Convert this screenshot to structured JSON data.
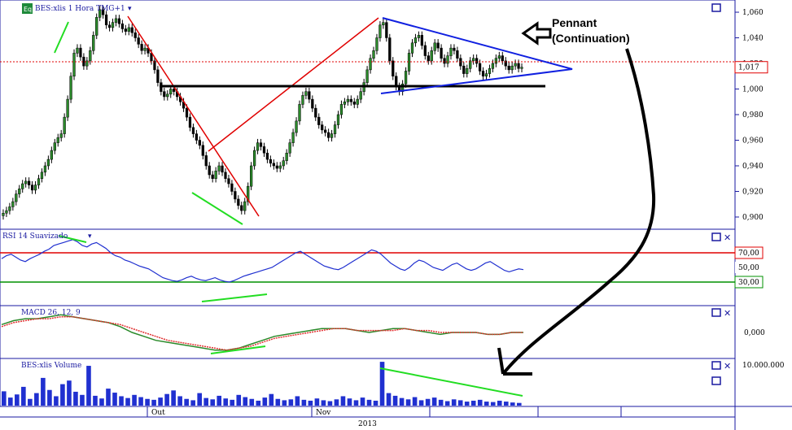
{
  "chart_data": [
    {
      "type": "candlestick",
      "panel": "price",
      "title": "BES:xlis 1 Hora TMG+1",
      "badge": "Eq",
      "ylim": [
        0.893,
        1.067
      ],
      "yticks": [
        "1,060",
        "1,040",
        "1,020",
        "1,000",
        "0,980",
        "0,960",
        "0,940",
        "0,920",
        "0,900"
      ],
      "ytick_values": [
        1.06,
        1.04,
        1.02,
        1.0,
        0.98,
        0.96,
        0.94,
        0.92,
        0.9
      ],
      "current_value": "1,017",
      "current": 1.017,
      "series": [
        {
          "name": "close",
          "values": [
            0.903,
            0.905,
            0.908,
            0.912,
            0.918,
            0.922,
            0.926,
            0.928,
            0.925,
            0.921,
            0.925,
            0.93,
            0.935,
            0.94,
            0.945,
            0.952,
            0.958,
            0.962,
            0.965,
            0.978,
            0.992,
            1.01,
            1.028,
            1.032,
            1.025,
            1.018,
            1.022,
            1.03,
            1.042,
            1.056,
            1.062,
            1.058,
            1.05,
            1.048,
            1.052,
            1.055,
            1.051,
            1.047,
            1.045,
            1.048,
            1.044,
            1.04,
            1.035,
            1.03,
            1.032,
            1.028,
            1.022,
            1.015,
            1.005,
            0.998,
            0.994,
            0.996,
            1.0,
            0.998,
            0.994,
            0.99,
            0.985,
            0.978,
            0.97,
            0.965,
            0.96,
            0.956,
            0.948,
            0.94,
            0.933,
            0.93,
            0.936,
            0.94,
            0.935,
            0.93,
            0.926,
            0.92,
            0.914,
            0.909,
            0.905,
            0.912,
            0.924,
            0.94,
            0.952,
            0.958,
            0.955,
            0.95,
            0.945,
            0.942,
            0.94,
            0.938,
            0.94,
            0.944,
            0.95,
            0.958,
            0.966,
            0.975,
            0.988,
            0.995,
            0.998,
            0.992,
            0.985,
            0.978,
            0.972,
            0.968,
            0.966,
            0.962,
            0.965,
            0.972,
            0.98,
            0.988,
            0.99,
            0.992,
            0.99,
            0.988,
            0.992,
            0.998,
            1.005,
            1.015,
            1.024,
            1.03,
            1.04,
            1.05,
            1.052,
            1.04,
            1.022,
            1.01,
            1.002,
            0.998,
            1.004,
            1.014,
            1.028,
            1.036,
            1.04,
            1.042,
            1.034,
            1.026,
            1.022,
            1.03,
            1.036,
            1.032,
            1.024,
            1.02,
            1.026,
            1.032,
            1.03,
            1.024,
            1.018,
            1.012,
            1.016,
            1.022,
            1.024,
            1.02,
            1.014,
            1.01,
            1.012,
            1.016,
            1.02,
            1.024,
            1.026,
            1.022,
            1.018,
            1.015,
            1.018,
            1.02,
            1.016,
            1.017
          ]
        }
      ]
    },
    {
      "type": "line",
      "panel": "rsi",
      "title": "RSI 14 Suavizado",
      "ylim": [
        0,
        100
      ],
      "levels": [
        {
          "value": 70,
          "label": "70,00",
          "color": "#e00000"
        },
        {
          "value": 50,
          "label": "50,00",
          "color": "#000"
        },
        {
          "value": 30,
          "label": "30,00",
          "color": "#009000"
        }
      ],
      "series": [
        {
          "name": "RSI",
          "values": [
            62,
            66,
            68,
            64,
            60,
            58,
            62,
            65,
            68,
            72,
            75,
            80,
            82,
            84,
            86,
            88,
            85,
            80,
            78,
            82,
            84,
            80,
            76,
            70,
            66,
            64,
            60,
            58,
            55,
            52,
            50,
            48,
            44,
            40,
            36,
            34,
            32,
            31,
            33,
            36,
            38,
            35,
            33,
            32,
            34,
            36,
            33,
            31,
            30,
            32,
            35,
            38,
            40,
            42,
            44,
            46,
            48,
            50,
            54,
            58,
            62,
            66,
            70,
            72,
            68,
            64,
            60,
            56,
            52,
            50,
            48,
            47,
            50,
            54,
            58,
            62,
            66,
            70,
            74,
            72,
            68,
            62,
            56,
            52,
            48,
            46,
            50,
            56,
            60,
            58,
            54,
            50,
            48,
            46,
            50,
            54,
            56,
            52,
            48,
            46,
            48,
            52,
            56,
            58,
            54,
            50,
            46,
            44,
            46,
            48,
            47
          ]
        }
      ]
    },
    {
      "type": "line",
      "panel": "macd",
      "title": "MACD 26, 12, 9",
      "yticks": [
        "0,000"
      ],
      "ylim": [
        -0.012,
        0.012
      ],
      "series": [
        {
          "name": "MACD",
          "color": "#2a8a2a",
          "values": [
            0.004,
            0.006,
            0.007,
            0.007,
            0.008,
            0.009,
            0.008,
            0.007,
            0.006,
            0.005,
            0.003,
            0.0,
            -0.002,
            -0.004,
            -0.005,
            -0.006,
            -0.007,
            -0.008,
            -0.009,
            -0.009,
            -0.008,
            -0.006,
            -0.004,
            -0.002,
            -0.001,
            0.0,
            0.001,
            0.002,
            0.002,
            0.002,
            0.001,
            0.0,
            0.001,
            0.002,
            0.002,
            0.001,
            0.0,
            -0.001,
            0.0,
            0.0,
            0.0,
            -0.001,
            -0.001,
            0.0,
            0.0
          ]
        },
        {
          "name": "Signal",
          "color": "#e03030",
          "values": [
            0.003,
            0.005,
            0.006,
            0.007,
            0.007,
            0.008,
            0.008,
            0.007,
            0.006,
            0.005,
            0.004,
            0.002,
            0.0,
            -0.002,
            -0.004,
            -0.005,
            -0.006,
            -0.007,
            -0.008,
            -0.009,
            -0.008,
            -0.007,
            -0.005,
            -0.003,
            -0.002,
            -0.001,
            0.0,
            0.001,
            0.002,
            0.002,
            0.001,
            0.001,
            0.001,
            0.001,
            0.002,
            0.001,
            0.001,
            0.0,
            0.0,
            0.0,
            0.0,
            -0.001,
            -0.001,
            0.0,
            0.0
          ]
        }
      ]
    },
    {
      "type": "bar",
      "panel": "volume",
      "title": "BES:xlis Volume",
      "yticks": [
        "10.000.000"
      ],
      "ylim": [
        0,
        10000000
      ],
      "series": [
        {
          "name": "Volume",
          "values": [
            3200000,
            1800000,
            2500000,
            4200000,
            1500000,
            2800000,
            6200000,
            3500000,
            2100000,
            4800000,
            5600000,
            3100000,
            2400000,
            8900000,
            2200000,
            1600000,
            3800000,
            2900000,
            2100000,
            1700000,
            2400000,
            1900000,
            1500000,
            1300000,
            1800000,
            2600000,
            3400000,
            2100000,
            1500000,
            1200000,
            2800000,
            1700000,
            1400000,
            2200000,
            1600000,
            1300000,
            2400000,
            1900000,
            1500000,
            1100000,
            1800000,
            2600000,
            1500000,
            1200000,
            1400000,
            2100000,
            1300000,
            1100000,
            1600000,
            1200000,
            1000000,
            1400000,
            2100000,
            1600000,
            1200000,
            1800000,
            1300000,
            1100000,
            9800000,
            2800000,
            2200000,
            1700000,
            1400000,
            1900000,
            1200000,
            1500000,
            1800000,
            1300000,
            1000000,
            1400000,
            1200000,
            900000,
            1100000,
            1300000,
            900000,
            800000,
            1100000,
            900000,
            700000,
            600000
          ]
        }
      ]
    }
  ],
  "x_labels": [
    "Out",
    "Nov"
  ],
  "year_label": "2013",
  "annotation": {
    "line1": "Pennant",
    "line2": "(Continuation)"
  },
  "colors": {
    "axis_blue": "#1a1aa0",
    "rsi": "#2030d0",
    "trend_red": "#e00000",
    "support_black": "#000000",
    "triangle_blue": "#1020e0",
    "divergence_green": "#22dd22",
    "volume": "#2030d0"
  }
}
